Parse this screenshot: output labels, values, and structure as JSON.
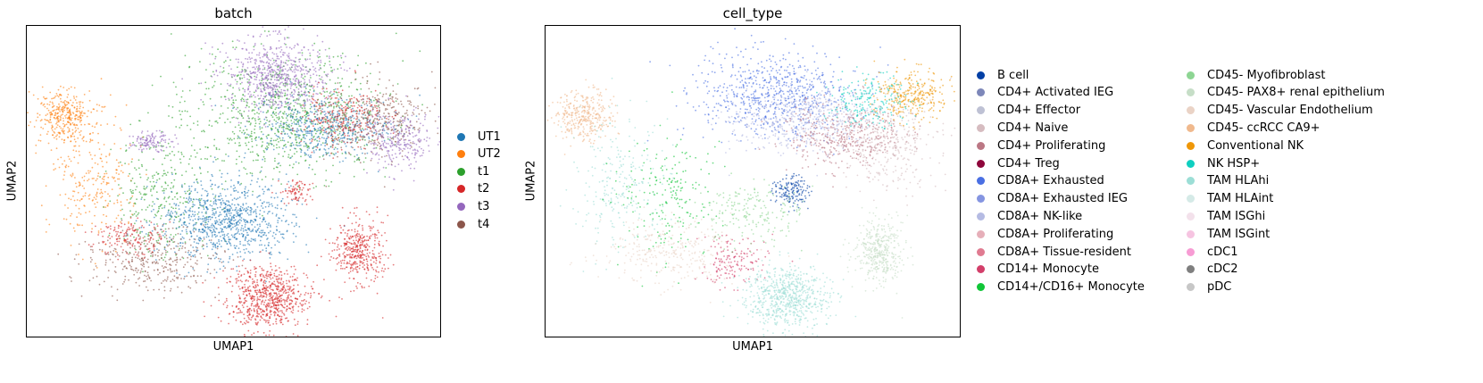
{
  "chart_data": [
    {
      "type": "scatter",
      "title": "batch",
      "xlabel": "UMAP1",
      "ylabel": "UMAP2",
      "grid": false,
      "ticks": "none",
      "legend_position": "right",
      "series": [
        {
          "name": "UT1",
          "color": "#1f77b4"
        },
        {
          "name": "UT2",
          "color": "#ff7f0e"
        },
        {
          "name": "t1",
          "color": "#2ca02c"
        },
        {
          "name": "t2",
          "color": "#d62728"
        },
        {
          "name": "t3",
          "color": "#9467bd"
        },
        {
          "name": "t4",
          "color": "#8c564b"
        }
      ]
    },
    {
      "type": "scatter",
      "title": "cell_type",
      "xlabel": "UMAP1",
      "ylabel": "UMAP2",
      "grid": false,
      "ticks": "none",
      "legend_position": "right",
      "legend_columns": 2,
      "series": [
        {
          "name": "B cell",
          "color": "#023fa5"
        },
        {
          "name": "CD4+ Activated IEG",
          "color": "#7d87b9"
        },
        {
          "name": "CD4+ Effector",
          "color": "#bec1d4"
        },
        {
          "name": "CD4+ Naive",
          "color": "#d6bcc0"
        },
        {
          "name": "CD4+ Proliferating",
          "color": "#bb7784"
        },
        {
          "name": "CD4+ Treg",
          "color": "#8e063b"
        },
        {
          "name": "CD8A+ Exhausted",
          "color": "#4a6fe3"
        },
        {
          "name": "CD8A+ Exhausted IEG",
          "color": "#8595e1"
        },
        {
          "name": "CD8A+ NK-like",
          "color": "#b5bbe3"
        },
        {
          "name": "CD8A+ Proliferating",
          "color": "#e6afb9"
        },
        {
          "name": "CD8A+ Tissue-resident",
          "color": "#e07b91"
        },
        {
          "name": "CD14+ Monocyte",
          "color": "#d33f6a"
        },
        {
          "name": "CD14+/CD16+ Monocyte",
          "color": "#11c638"
        },
        {
          "name": "CD45- Myofibroblast",
          "color": "#8dd593"
        },
        {
          "name": "CD45- PAX8+ renal epithelium",
          "color": "#c6dec7"
        },
        {
          "name": "CD45- Vascular Endothelium",
          "color": "#ead3c6"
        },
        {
          "name": "CD45- ccRCC CA9+",
          "color": "#f0b98d"
        },
        {
          "name": "Conventional NK",
          "color": "#ef9708"
        },
        {
          "name": "NK HSP+",
          "color": "#0fcfc0"
        },
        {
          "name": "TAM HLAhi",
          "color": "#9cded6"
        },
        {
          "name": "TAM HLAint",
          "color": "#d5eae7"
        },
        {
          "name": "TAM ISGhi",
          "color": "#f3e1eb"
        },
        {
          "name": "TAM ISGint",
          "color": "#f6c4e1"
        },
        {
          "name": "cDC1",
          "color": "#f79cd4"
        },
        {
          "name": "cDC2",
          "color": "#7f7f7f"
        },
        {
          "name": "pDC",
          "color": "#c7c7c7"
        }
      ]
    }
  ]
}
